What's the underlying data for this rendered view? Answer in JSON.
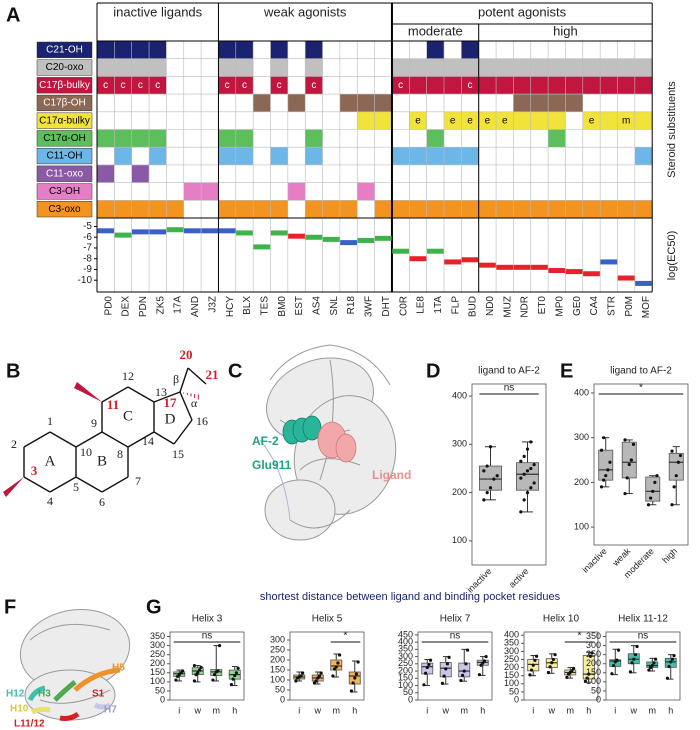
{
  "panel_labels": [
    "A",
    "B",
    "C",
    "D",
    "E",
    "F",
    "G"
  ],
  "ligand_grid": {
    "group_labels": [
      "inactive ligands",
      "weak agonists",
      "potent agonists"
    ],
    "subgroup_labels": [
      "moderate",
      "high"
    ],
    "side_label": "Steroid substituents",
    "ligands": [
      "PD0",
      "DEX",
      "PDN",
      "ZK5",
      "17A",
      "AND",
      "J3Z",
      "HCY",
      "BLX",
      "TES",
      "BM0",
      "EST",
      "AS4",
      "SNL",
      "R18",
      "3WF",
      "DHT",
      "C0R",
      "LE8",
      "1TA",
      "FLP",
      "BUD",
      "ND0",
      "MUZ",
      "NDR",
      "ET0",
      "MP0",
      "GE0",
      "CA4",
      "STR",
      "P0M",
      "MOF"
    ],
    "rows": [
      {
        "label": "C21-OH",
        "color": "#1b2370",
        "text_color": "#ffffff",
        "cells": [
          true,
          true,
          true,
          true,
          null,
          null,
          null,
          true,
          true,
          null,
          true,
          null,
          true,
          null,
          null,
          null,
          null,
          null,
          null,
          true,
          null,
          true,
          null,
          null,
          null,
          null,
          null,
          null,
          null,
          null,
          null,
          null
        ]
      },
      {
        "label": "C20-oxo",
        "color": "#c0c0c0",
        "text_color": "#000000",
        "cells": [
          true,
          true,
          true,
          true,
          null,
          null,
          null,
          true,
          true,
          null,
          true,
          null,
          true,
          null,
          null,
          null,
          null,
          true,
          true,
          true,
          true,
          true,
          true,
          true,
          true,
          true,
          true,
          true,
          true,
          true,
          true,
          true
        ]
      },
      {
        "label": "C17β-bulky",
        "color": "#c0163f",
        "text_color": "#ffffff",
        "cells": [
          "c",
          "c",
          "c",
          "c",
          null,
          null,
          null,
          "c",
          "c",
          null,
          "c",
          null,
          "c",
          null,
          null,
          null,
          null,
          "c",
          true,
          true,
          true,
          "c",
          true,
          true,
          true,
          true,
          true,
          true,
          true,
          true,
          true,
          true
        ]
      },
      {
        "label": "C17β-OH",
        "color": "#8c6753",
        "text_color": "#ffffff",
        "cells": [
          null,
          null,
          null,
          null,
          null,
          null,
          null,
          null,
          null,
          true,
          null,
          true,
          null,
          null,
          true,
          true,
          true,
          null,
          null,
          null,
          null,
          null,
          null,
          null,
          true,
          true,
          true,
          true,
          null,
          null,
          null,
          null
        ]
      },
      {
        "label": "C17α-bulky",
        "color": "#f2e33a",
        "text_color": "#000000",
        "cells": [
          null,
          null,
          null,
          null,
          null,
          null,
          null,
          null,
          null,
          null,
          null,
          null,
          null,
          null,
          null,
          true,
          true,
          null,
          "e",
          null,
          "e",
          "e",
          "e",
          "e",
          true,
          true,
          true,
          null,
          "e",
          true,
          "m",
          true
        ]
      },
      {
        "label": "C17α-OH",
        "color": "#5cbf5c",
        "text_color": "#000000",
        "cells": [
          true,
          true,
          true,
          true,
          null,
          null,
          null,
          true,
          true,
          null,
          null,
          null,
          true,
          null,
          null,
          null,
          null,
          null,
          null,
          true,
          null,
          null,
          null,
          null,
          null,
          null,
          true,
          null,
          null,
          null,
          null,
          null
        ]
      },
      {
        "label": "C11-OH",
        "color": "#6cb6e8",
        "text_color": "#000000",
        "cells": [
          null,
          true,
          null,
          true,
          null,
          null,
          null,
          true,
          true,
          null,
          true,
          null,
          true,
          null,
          null,
          null,
          null,
          true,
          true,
          true,
          true,
          true,
          null,
          null,
          null,
          null,
          null,
          null,
          null,
          null,
          null,
          true
        ]
      },
      {
        "label": "C11-oxo",
        "color": "#8b5aa6",
        "text_color": "#ffffff",
        "cells": [
          true,
          null,
          true,
          null,
          null,
          null,
          null,
          null,
          null,
          null,
          null,
          null,
          null,
          null,
          null,
          null,
          null,
          null,
          null,
          null,
          null,
          null,
          null,
          null,
          null,
          null,
          null,
          null,
          null,
          null,
          null,
          null
        ]
      },
      {
        "label": "C3-OH",
        "color": "#e57ec4",
        "text_color": "#000000",
        "cells": [
          null,
          null,
          null,
          null,
          null,
          true,
          true,
          null,
          null,
          null,
          null,
          true,
          null,
          null,
          null,
          true,
          null,
          null,
          null,
          null,
          null,
          null,
          null,
          null,
          null,
          null,
          null,
          null,
          null,
          null,
          null,
          null
        ]
      },
      {
        "label": "C3-oxo",
        "color": "#f39320",
        "text_color": "#000000",
        "cells": [
          true,
          true,
          true,
          true,
          true,
          null,
          null,
          true,
          true,
          true,
          true,
          null,
          true,
          true,
          true,
          null,
          true,
          true,
          true,
          true,
          true,
          true,
          true,
          true,
          true,
          true,
          true,
          true,
          true,
          true,
          true,
          true
        ]
      }
    ],
    "ec50": {
      "type": "strip",
      "y_label": "log(EC50)",
      "ylim": [
        -4.3,
        -11.1
      ],
      "yticks": [
        -5,
        -6,
        -7,
        -8,
        -9,
        -10
      ],
      "values": [
        -5.4,
        -5.8,
        -5.5,
        -5.5,
        -5.3,
        -5.4,
        -5.4,
        -5.4,
        -5.6,
        -6.9,
        -5.6,
        -5.9,
        -6.0,
        -6.2,
        -6.5,
        -6.3,
        -6.1,
        -7.3,
        -8.0,
        -7.3,
        -8.3,
        -8.1,
        -8.6,
        -8.8,
        -8.8,
        -8.8,
        -9.1,
        -9.2,
        -9.4,
        -8.3,
        -9.8,
        -10.3
      ],
      "colors": [
        "#3a5fc8",
        "#3db34a",
        "#3a5fc8",
        "#3a5fc8",
        "#3db34a",
        "#3a5fc8",
        "#3a5fc8",
        "#3a5fc8",
        "#3db34a",
        "#3db34a",
        "#3db34a",
        "#e8202a",
        "#3db34a",
        "#3db34a",
        "#3a5fc8",
        "#3db34a",
        "#3db34a",
        "#3db34a",
        "#e8202a",
        "#3db34a",
        "#e8202a",
        "#e8202a",
        "#e8202a",
        "#e8202a",
        "#e8202a",
        "#e8202a",
        "#e8202a",
        "#e8202a",
        "#e8202a",
        "#3a5fc8",
        "#e8202a",
        "#3a5fc8"
      ]
    }
  },
  "molecule": {
    "atom_labels": [
      "1",
      "2",
      "3",
      "4",
      "5",
      "6",
      "7",
      "8",
      "9",
      "10",
      "11",
      "12",
      "13",
      "14",
      "15",
      "16",
      "17",
      "20",
      "21"
    ],
    "ring_labels": [
      "A",
      "B",
      "C",
      "D"
    ],
    "stereo_labels": [
      "α",
      "β"
    ],
    "highlight_color": "#d4202a"
  },
  "structure_c": {
    "labels": [
      "AF-2",
      "Glu911",
      "Ligand"
    ]
  },
  "structure_f": {
    "labels": [
      "H5",
      "H12",
      "H3",
      "H10",
      "S1",
      "L11/12",
      "H7"
    ]
  },
  "g_title": "shortest distance between ligand and binding pocket residues",
  "chart_data": [
    {
      "type": "box",
      "title": "ligand to AF-2",
      "categories": [
        "inactive",
        "active"
      ],
      "annotation": "ns",
      "color": "#b8b8b8",
      "ylim": [
        50,
        425
      ],
      "yticks": [
        100,
        200,
        300,
        400
      ],
      "boxes": [
        {
          "min": 185,
          "q1": 205,
          "median": 228,
          "q3": 255,
          "max": 295,
          "points": [
            185,
            200,
            210,
            228,
            235,
            245,
            255,
            295
          ]
        },
        {
          "min": 160,
          "q1": 205,
          "median": 238,
          "q3": 262,
          "max": 305,
          "points": [
            160,
            185,
            200,
            210,
            220,
            230,
            238,
            245,
            250,
            258,
            265,
            275,
            290,
            305
          ]
        }
      ]
    },
    {
      "type": "box",
      "title": "ligand to AF-2",
      "categories": [
        "inactive",
        "weak",
        "moderate",
        "high"
      ],
      "annotation": "*",
      "color": "#b8b8b8",
      "ylim": [
        60,
        420
      ],
      "yticks": [
        100,
        200,
        300,
        400
      ],
      "boxes": [
        {
          "min": 190,
          "q1": 205,
          "median": 228,
          "q3": 272,
          "max": 300,
          "points": [
            190,
            205,
            215,
            228,
            245,
            272,
            300
          ]
        },
        {
          "min": 175,
          "q1": 210,
          "median": 245,
          "q3": 290,
          "max": 295,
          "points": [
            175,
            210,
            240,
            250,
            285,
            295
          ]
        },
        {
          "min": 150,
          "q1": 158,
          "median": 180,
          "q3": 212,
          "max": 215,
          "points": [
            150,
            165,
            180,
            200,
            215
          ]
        },
        {
          "min": 150,
          "q1": 205,
          "median": 245,
          "q3": 265,
          "max": 280,
          "points": [
            150,
            190,
            215,
            245,
            260,
            270
          ]
        }
      ]
    },
    {
      "type": "box",
      "title": "Helix 3",
      "categories": [
        "i",
        "w",
        "m",
        "h"
      ],
      "annotation": "ns",
      "color": "#8fd88f",
      "ylim": [
        0,
        375
      ],
      "yticks": [
        0,
        50,
        100,
        150,
        200,
        250,
        300,
        350
      ],
      "boxes": [
        {
          "min": 105,
          "q1": 130,
          "median": 145,
          "q3": 155,
          "max": 165,
          "points": [
            110,
            130,
            140,
            150,
            160
          ]
        },
        {
          "min": 100,
          "q1": 140,
          "median": 160,
          "q3": 178,
          "max": 190,
          "points": [
            105,
            140,
            150,
            165,
            180,
            190
          ]
        },
        {
          "min": 105,
          "q1": 135,
          "median": 155,
          "q3": 168,
          "max": 300,
          "points": [
            110,
            140,
            155,
            160,
            300
          ]
        },
        {
          "min": 80,
          "q1": 115,
          "median": 140,
          "q3": 165,
          "max": 185,
          "points": [
            85,
            115,
            135,
            150,
            175
          ]
        }
      ]
    },
    {
      "type": "box",
      "title": "Helix 5",
      "categories": [
        "i",
        "w",
        "m",
        "h"
      ],
      "annotation": "*",
      "color": "#f2b556",
      "ylim": [
        0,
        340
      ],
      "yticks": [
        0,
        50,
        100,
        150,
        200,
        250,
        300
      ],
      "boxes": [
        {
          "min": 95,
          "q1": 105,
          "median": 115,
          "q3": 125,
          "max": 140,
          "points": [
            95,
            110,
            115,
            120,
            135
          ]
        },
        {
          "min": 80,
          "q1": 95,
          "median": 110,
          "q3": 125,
          "max": 140,
          "points": [
            85,
            95,
            110,
            120,
            135
          ]
        },
        {
          "min": 115,
          "q1": 150,
          "median": 170,
          "q3": 200,
          "max": 230,
          "points": [
            120,
            155,
            165,
            185,
            225
          ]
        },
        {
          "min": 40,
          "q1": 80,
          "median": 120,
          "q3": 140,
          "max": 195,
          "points": [
            45,
            85,
            110,
            130,
            190
          ]
        }
      ]
    },
    {
      "type": "box",
      "title": "Helix 7",
      "categories": [
        "i",
        "w",
        "m",
        "h"
      ],
      "annotation": "ns",
      "color": "#c9c7e6",
      "ylim": [
        0,
        470
      ],
      "yticks": [
        0,
        50,
        100,
        150,
        200,
        250,
        300,
        350,
        400,
        450
      ],
      "boxes": [
        {
          "min": 100,
          "q1": 180,
          "median": 230,
          "q3": 255,
          "max": 280,
          "points": [
            105,
            185,
            225,
            245,
            275
          ]
        },
        {
          "min": 110,
          "q1": 160,
          "median": 220,
          "q3": 260,
          "max": 300,
          "points": [
            115,
            165,
            215,
            250,
            295
          ]
        },
        {
          "min": 130,
          "q1": 160,
          "median": 200,
          "q3": 255,
          "max": 350,
          "points": [
            135,
            170,
            200,
            250,
            345
          ]
        },
        {
          "min": 170,
          "q1": 240,
          "median": 260,
          "q3": 275,
          "max": 300,
          "points": [
            175,
            240,
            255,
            270,
            300
          ]
        }
      ]
    },
    {
      "type": "box",
      "title": "Helix 10",
      "categories": [
        "i",
        "w",
        "m",
        "h"
      ],
      "annotation": "*",
      "color": "#f8ef9e",
      "ylim": [
        0,
        420
      ],
      "yticks": [
        0,
        50,
        100,
        150,
        200,
        250,
        300,
        350,
        400
      ],
      "boxes": [
        {
          "min": 150,
          "q1": 180,
          "median": 220,
          "q3": 250,
          "max": 275,
          "points": [
            155,
            185,
            215,
            245,
            270
          ]
        },
        {
          "min": 165,
          "q1": 200,
          "median": 230,
          "q3": 255,
          "max": 285,
          "points": [
            170,
            205,
            230,
            250,
            280
          ]
        },
        {
          "min": 135,
          "q1": 155,
          "median": 170,
          "q3": 185,
          "max": 200,
          "points": [
            140,
            160,
            170,
            180,
            195
          ]
        },
        {
          "min": 110,
          "q1": 130,
          "median": 160,
          "q3": 275,
          "max": 295,
          "points": [
            115,
            135,
            160,
            270,
            290
          ]
        }
      ]
    },
    {
      "type": "box",
      "title": "Helix 11-12",
      "categories": [
        "i",
        "w",
        "m",
        "h"
      ],
      "annotation": "ns",
      "color": "#3fbfae",
      "ylim": [
        0,
        375
      ],
      "yticks": [
        0,
        50,
        100,
        150,
        200,
        250,
        300,
        350
      ],
      "boxes": [
        {
          "min": 140,
          "q1": 185,
          "median": 215,
          "q3": 222,
          "max": 280,
          "points": [
            145,
            190,
            210,
            220,
            275
          ]
        },
        {
          "min": 150,
          "q1": 200,
          "median": 225,
          "q3": 255,
          "max": 300,
          "points": [
            155,
            205,
            225,
            250,
            295
          ]
        },
        {
          "min": 160,
          "q1": 180,
          "median": 190,
          "q3": 210,
          "max": 230,
          "points": [
            165,
            180,
            190,
            205,
            225
          ]
        },
        {
          "min": 115,
          "q1": 180,
          "median": 210,
          "q3": 230,
          "max": 250,
          "points": [
            120,
            185,
            210,
            225,
            245
          ]
        }
      ]
    }
  ]
}
